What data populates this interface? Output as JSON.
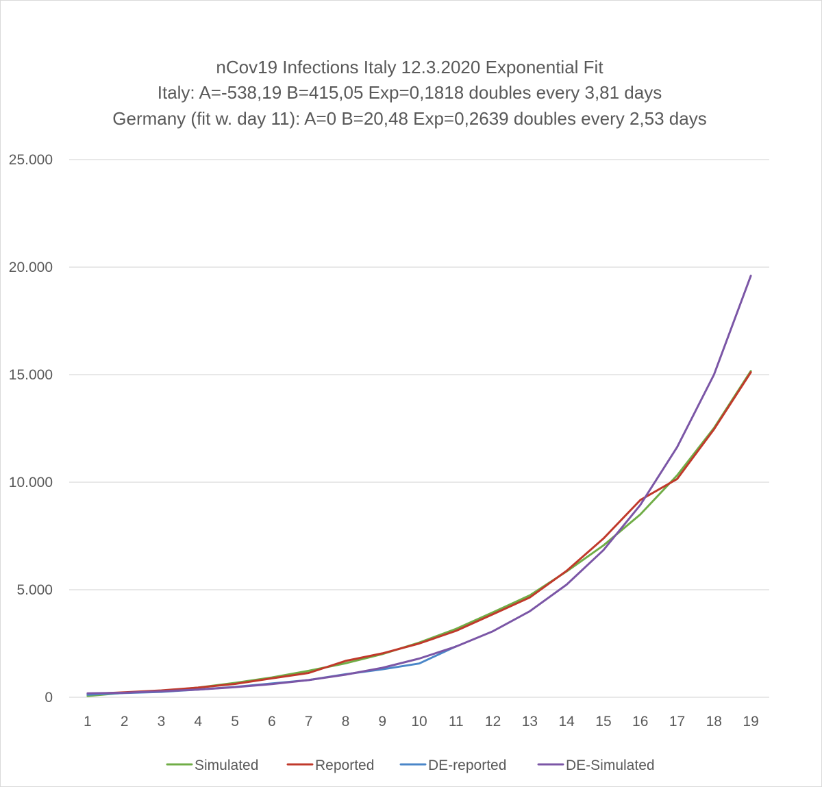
{
  "chart_data": {
    "type": "line",
    "title_lines": [
      "nCov19 Infections Italy 12.3.2020 Exponential Fit",
      "Italy: A=-538,19 B=415,05 Exp=0,1818 doubles every 3,81 days",
      "Germany (fit w. day 11): A=0 B=20,48 Exp=0,2639 doubles every 2,53 days"
    ],
    "xlabel": "",
    "ylabel": "",
    "ylim": [
      0,
      25000
    ],
    "y_ticks": [
      0,
      5000,
      10000,
      15000,
      20000,
      25000
    ],
    "y_tick_labels": [
      "0",
      "5.000",
      "10.000",
      "15.000",
      "20.000",
      "25.000"
    ],
    "categories": [
      "1",
      "2",
      "3",
      "4",
      "5",
      "6",
      "7",
      "8",
      "9",
      "10",
      "11",
      "12",
      "13",
      "14",
      "15",
      "16",
      "17",
      "18",
      "19"
    ],
    "grid": true,
    "legend_position": "bottom",
    "series": [
      {
        "name": "Simulated",
        "color": "#70ad47",
        "values": [
          60,
          210,
          290,
          450,
          670,
          920,
          1230,
          1580,
          2010,
          2540,
          3180,
          3950,
          4740,
          5850,
          7060,
          8500,
          10320,
          12520,
          15170
        ]
      },
      {
        "name": "Reported",
        "color": "#c0392b",
        "values": [
          150,
          230,
          320,
          450,
          620,
          880,
          1130,
          1690,
          2040,
          2500,
          3090,
          3860,
          4640,
          5880,
          7380,
          9170,
          10150,
          12460,
          15110
        ]
      },
      {
        "name": "DE-reported",
        "color": "#4a86c8",
        "values": [
          120,
          200,
          250,
          360,
          480,
          640,
          800,
          1070,
          1300,
          1570,
          2370,
          null,
          null,
          null,
          null,
          null,
          null,
          null,
          null
        ]
      },
      {
        "name": "DE-Simulated",
        "color": "#7b56a6",
        "values": [
          180,
          210,
          280,
          360,
          470,
          610,
          800,
          1050,
          1370,
          1800,
          2360,
          3070,
          4000,
          5240,
          6840,
          8940,
          11630,
          15000,
          19600
        ]
      }
    ]
  }
}
